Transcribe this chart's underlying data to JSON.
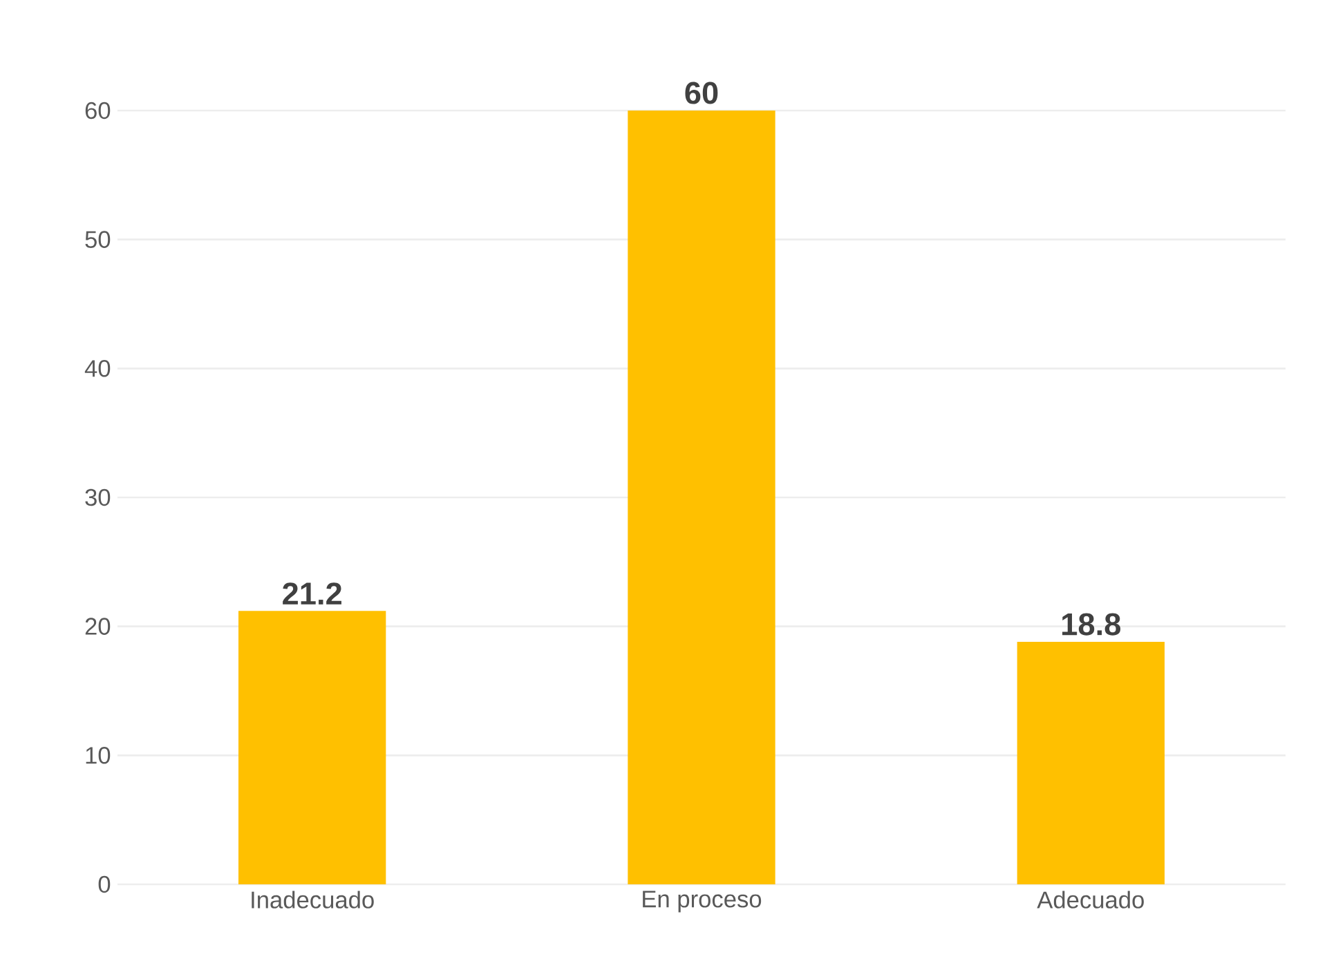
{
  "chart_data": {
    "type": "bar",
    "categories": [
      "Inadecuado",
      "En proceso",
      "Adecuado"
    ],
    "values": [
      21.2,
      60,
      18.8
    ],
    "color": "#ffc000",
    "data_labels": true,
    "grid": "y",
    "ylim": [
      0,
      60
    ],
    "yticks": [
      0,
      10,
      20,
      30,
      40,
      50,
      60
    ]
  }
}
